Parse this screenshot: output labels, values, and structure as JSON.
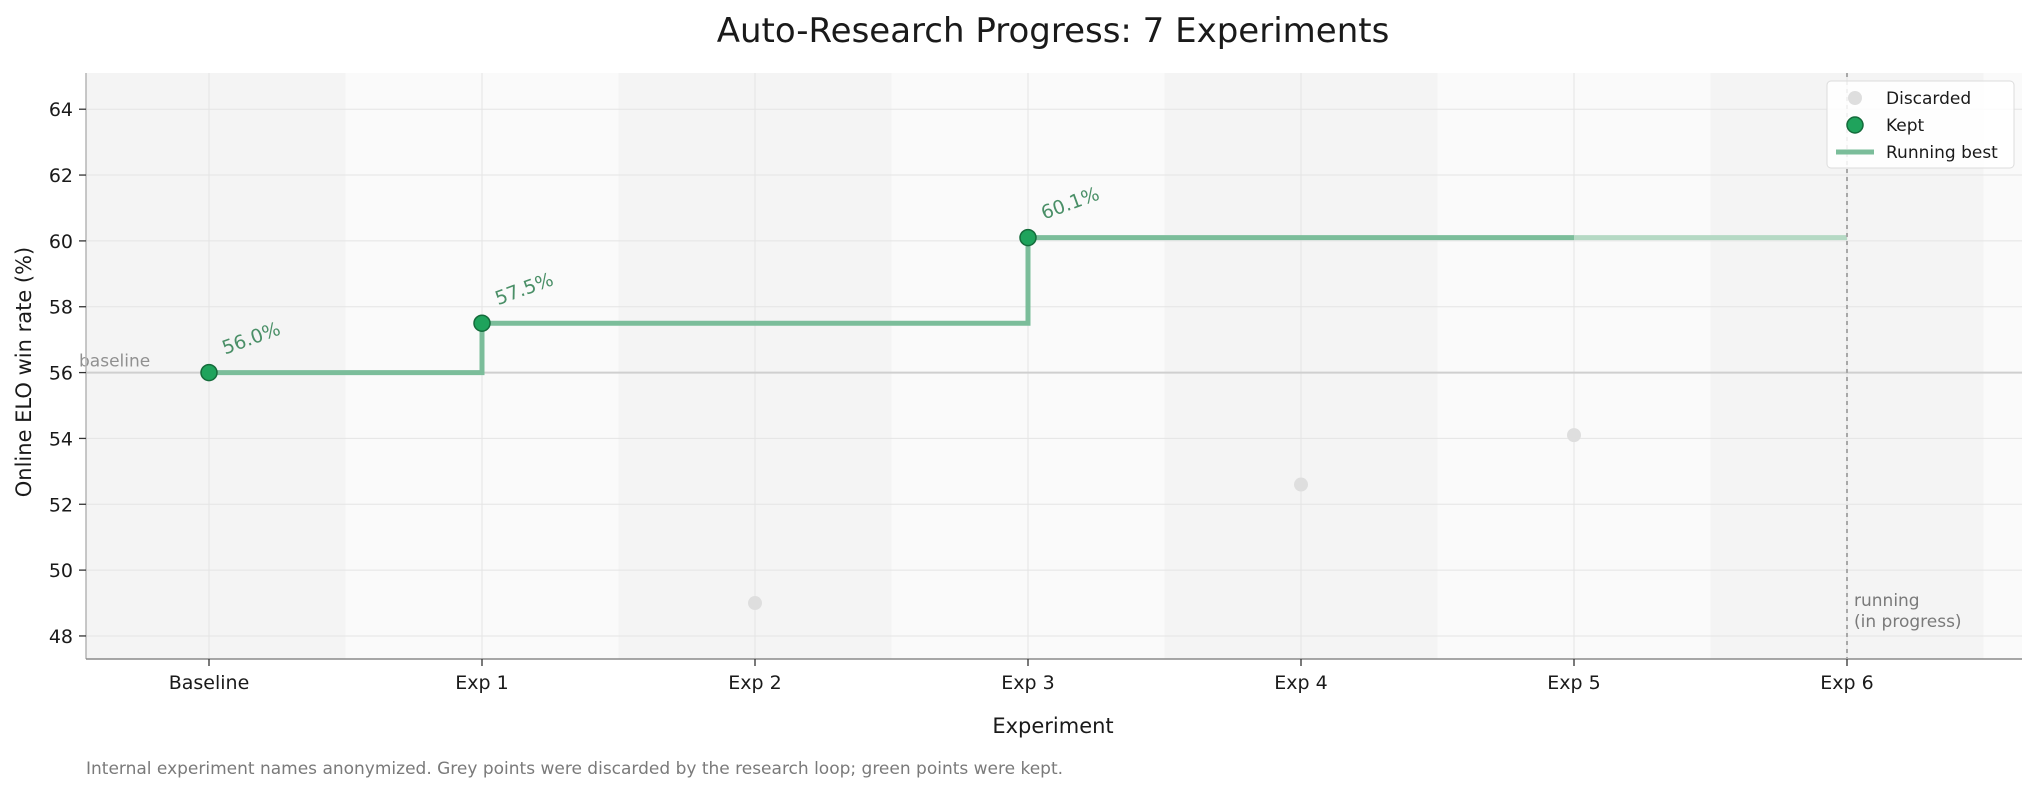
{
  "chart_data": {
    "type": "line",
    "title": "Auto-Research Progress: 7 Experiments",
    "xlabel": "Experiment",
    "ylabel": "Online ELO win rate (%)",
    "categories": [
      "Baseline",
      "Exp 1",
      "Exp 2",
      "Exp 3",
      "Exp 4",
      "Exp 5",
      "Exp 6"
    ],
    "ylim": [
      47.3,
      65.1
    ],
    "yticks": [
      48,
      50,
      52,
      54,
      56,
      58,
      60,
      62,
      64
    ],
    "grid": true,
    "legend_position": "top-right",
    "baseline": {
      "value": 56.0,
      "label": "baseline"
    },
    "points": [
      {
        "category": "Baseline",
        "value": 56.0,
        "status": "kept",
        "label": "56.0%"
      },
      {
        "category": "Exp 1",
        "value": 57.5,
        "status": "kept",
        "label": "57.5%"
      },
      {
        "category": "Exp 2",
        "value": 49.0,
        "status": "discarded",
        "label": ""
      },
      {
        "category": "Exp 3",
        "value": 60.1,
        "status": "kept",
        "label": "60.1%"
      },
      {
        "category": "Exp 4",
        "value": 52.6,
        "status": "discarded",
        "label": ""
      },
      {
        "category": "Exp 5",
        "value": 54.1,
        "status": "discarded",
        "label": ""
      }
    ],
    "running_best": [
      {
        "category": "Baseline",
        "value": 56.0
      },
      {
        "category": "Exp 1",
        "value": 57.5
      },
      {
        "category": "Exp 2",
        "value": 57.5
      },
      {
        "category": "Exp 3",
        "value": 60.1
      },
      {
        "category": "Exp 4",
        "value": 60.1
      },
      {
        "category": "Exp 5",
        "value": 60.1
      },
      {
        "category": "Exp 6",
        "value": 60.1
      }
    ],
    "in_progress": {
      "category": "Exp 6",
      "label_line1": "running",
      "label_line2": "(in progress)"
    },
    "legend": [
      {
        "key": "discarded",
        "label": "Discarded"
      },
      {
        "key": "kept",
        "label": "Kept"
      },
      {
        "key": "running",
        "label": "Running best"
      }
    ],
    "footnote": "Internal experiment names anonymized. Grey points were discarded by the research loop; green points were kept.",
    "colors": {
      "kept": "#1fa35c",
      "kept_edge": "#146b3b",
      "running": "#7bbd9a",
      "running_faded": "#b5d9c4",
      "discarded": "#dedede",
      "label": "#4a8f67",
      "band_a": "#f4f4f4",
      "band_b": "#fafafa",
      "grid": "#e4e4e4",
      "baseline_line": "#cfcfcf",
      "muted_text": "#7a7a7a"
    }
  }
}
